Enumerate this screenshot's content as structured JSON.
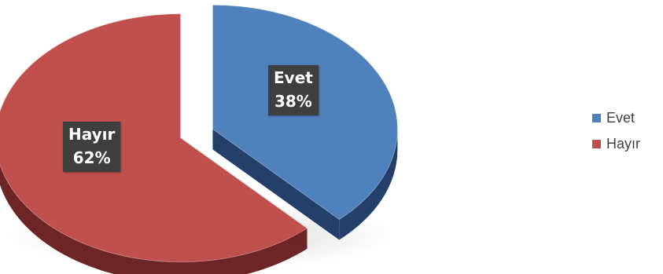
{
  "chart_data": {
    "type": "pie",
    "title": "",
    "categories": [
      "Evet",
      "Hayır"
    ],
    "values": [
      38,
      62
    ],
    "value_suffix": "%",
    "colors": [
      "#4f81bd",
      "#c0504d"
    ],
    "side_colors": [
      "#24406a",
      "#6e2525"
    ],
    "exploded": true,
    "three_d": true,
    "legend": {
      "position": "right",
      "items": [
        {
          "label": "Evet",
          "color": "#4f81bd"
        },
        {
          "label": "Hayır",
          "color": "#c0504d"
        }
      ]
    },
    "data_labels": [
      {
        "category": "Evet",
        "value": "38%"
      },
      {
        "category": "Hayır",
        "value": "62%"
      }
    ]
  }
}
